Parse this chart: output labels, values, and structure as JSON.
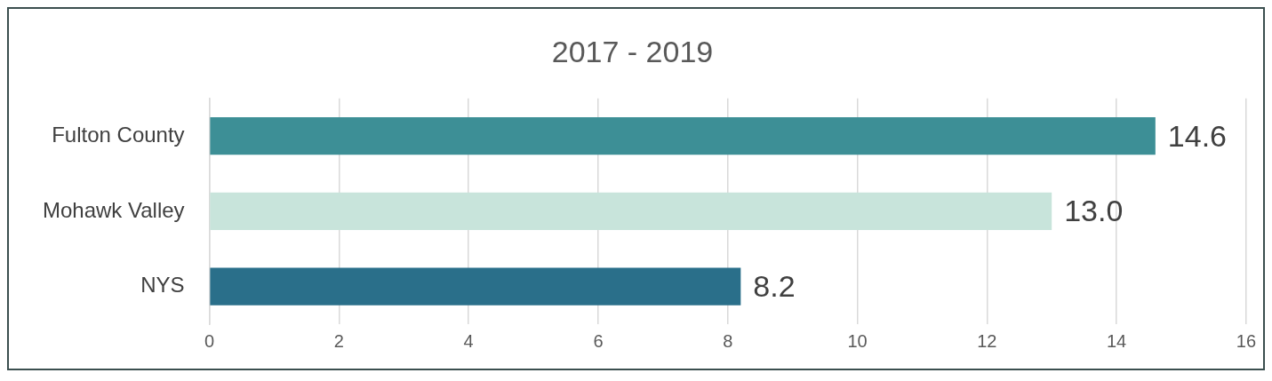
{
  "chart_data": {
    "type": "bar",
    "orientation": "horizontal",
    "title": "2017 - 2019",
    "categories": [
      "Fulton County",
      "Mohawk Valley",
      "NYS"
    ],
    "values": [
      14.6,
      13.0,
      8.2
    ],
    "colors": [
      "#3d8f96",
      "#c8e4db",
      "#2a6f8a"
    ],
    "value_labels": [
      "14.6",
      "13.0",
      "8.2"
    ],
    "xlim": [
      0,
      16
    ],
    "xticks": [
      0,
      2,
      4,
      6,
      8,
      10,
      12,
      14,
      16
    ],
    "grid": "x",
    "legend": false
  }
}
